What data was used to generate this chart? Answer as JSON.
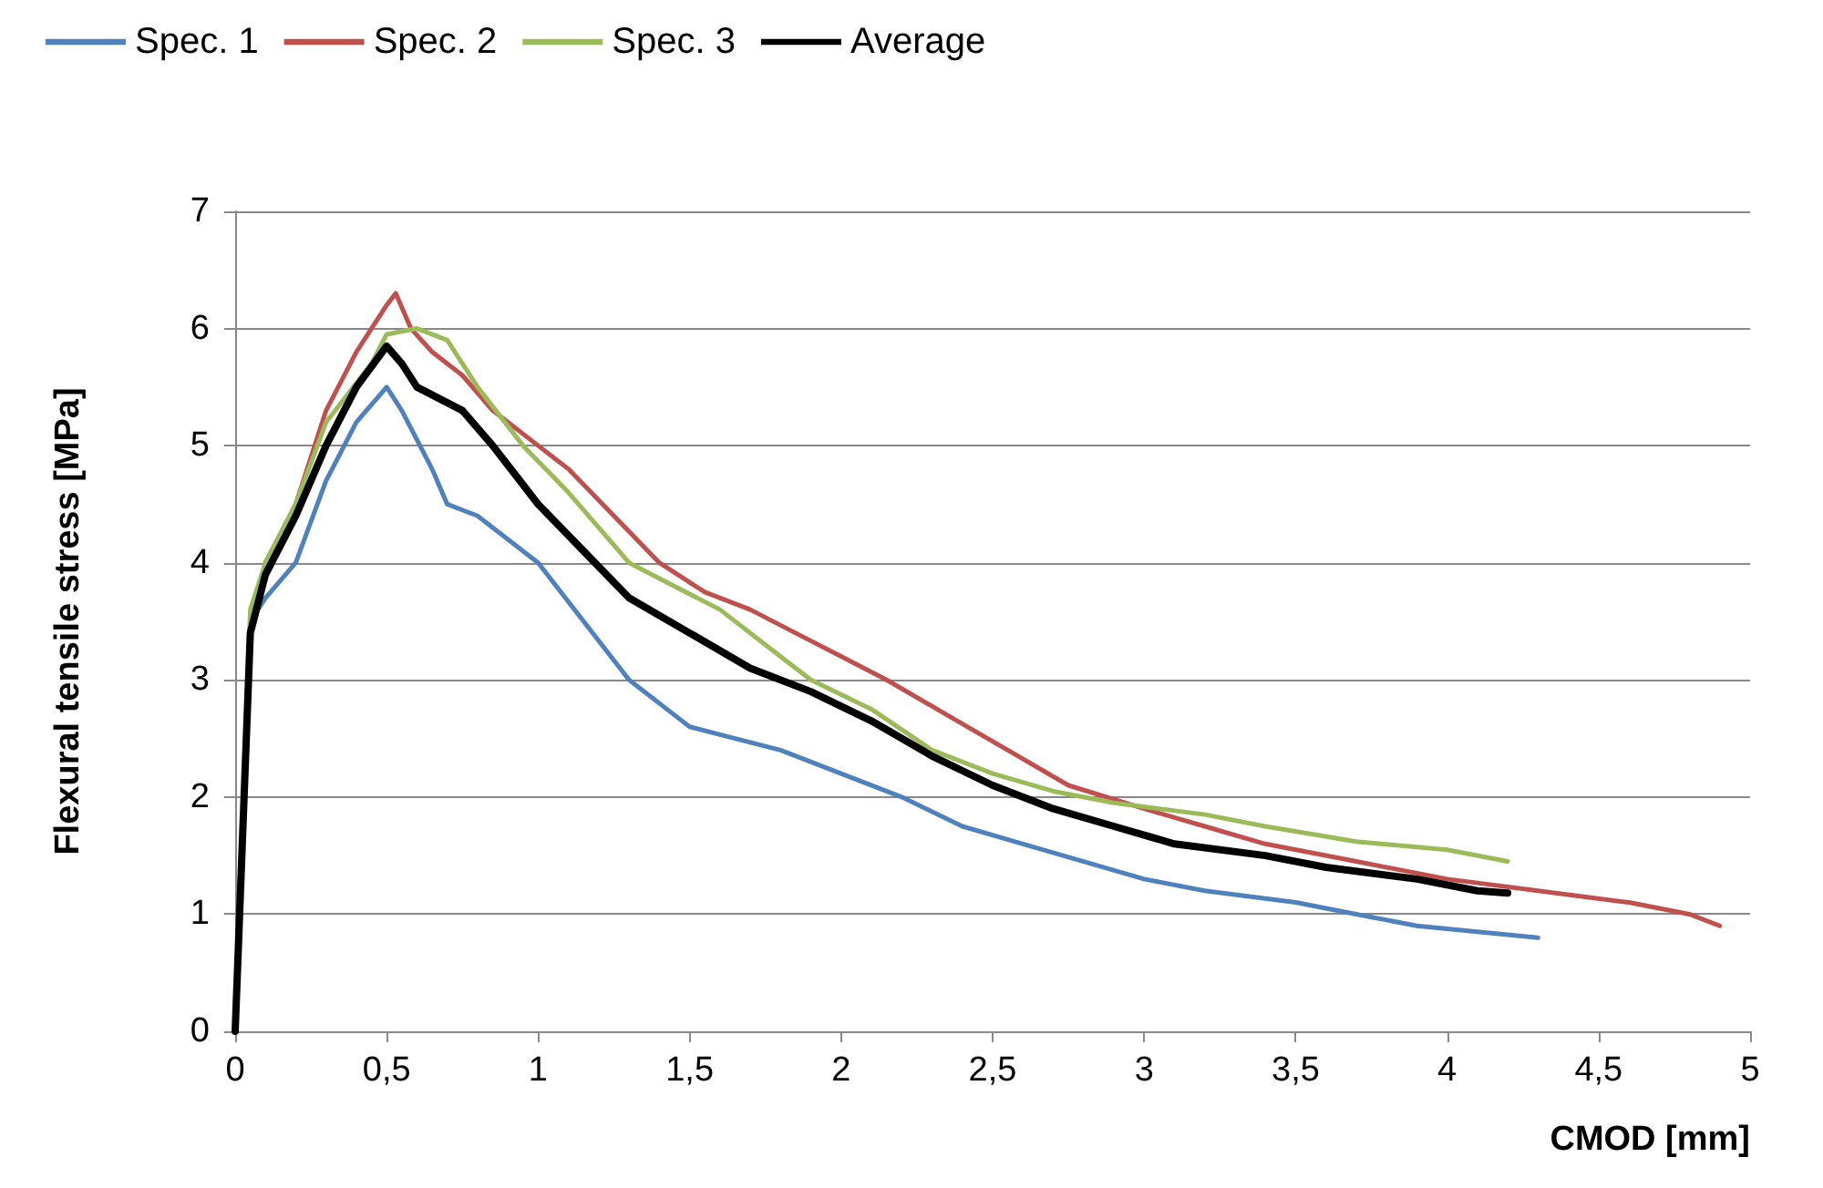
{
  "chart_data": {
    "type": "line",
    "xlabel": "CMOD [mm]",
    "ylabel": "Flexural tensile stress [MPa]",
    "xlim": [
      0,
      5
    ],
    "xticks": [
      0,
      {
        "value": 0.5,
        "label": "0,5"
      },
      1,
      {
        "value": 1.5,
        "label": "1,5"
      },
      2,
      {
        "value": 2.5,
        "label": "2,5"
      },
      3,
      {
        "value": 3.5,
        "label": "3,5"
      },
      4,
      {
        "value": 4.5,
        "label": "4,5"
      },
      5
    ],
    "ylim": [
      0,
      7
    ],
    "yticks": [
      0,
      1,
      2,
      3,
      4,
      5,
      6,
      7
    ],
    "grid": "y",
    "legend": "top left",
    "marker": "none",
    "line_style": "solid",
    "series": [
      {
        "name": "Spec. 1",
        "color": "#4f81bd",
        "x": [
          0,
          0.05,
          0.1,
          0.2,
          0.3,
          0.4,
          0.5,
          0.55,
          0.65,
          0.7,
          0.8,
          0.9,
          1.0,
          1.15,
          1.3,
          1.45,
          1.5,
          1.65,
          1.8,
          2.0,
          2.2,
          2.4,
          2.6,
          2.8,
          3.0,
          3.2,
          3.5,
          3.7,
          3.9,
          4.1,
          4.3
        ],
        "values": [
          0,
          3.5,
          3.7,
          4.0,
          4.7,
          5.2,
          5.5,
          5.3,
          4.8,
          4.5,
          4.4,
          4.2,
          4.0,
          3.5,
          3.0,
          2.7,
          2.6,
          2.5,
          2.4,
          2.2,
          2.0,
          1.75,
          1.6,
          1.45,
          1.3,
          1.2,
          1.1,
          1.0,
          0.9,
          0.85,
          0.8
        ]
      },
      {
        "name": "Spec. 2",
        "color": "#c0504d",
        "x": [
          0,
          0.05,
          0.1,
          0.2,
          0.3,
          0.4,
          0.5,
          0.53,
          0.58,
          0.65,
          0.75,
          0.85,
          1.0,
          1.1,
          1.25,
          1.4,
          1.55,
          1.7,
          1.85,
          2.0,
          2.15,
          2.35,
          2.55,
          2.75,
          3.0,
          3.2,
          3.4,
          3.7,
          4.0,
          4.3,
          4.6,
          4.8,
          4.9
        ],
        "values": [
          0,
          3.5,
          4.0,
          4.5,
          5.3,
          5.8,
          6.2,
          6.3,
          6.0,
          5.8,
          5.6,
          5.3,
          5.0,
          4.8,
          4.4,
          4.0,
          3.75,
          3.6,
          3.4,
          3.2,
          3.0,
          2.7,
          2.4,
          2.1,
          1.9,
          1.75,
          1.6,
          1.45,
          1.3,
          1.2,
          1.1,
          1.0,
          0.9
        ]
      },
      {
        "name": "Spec. 3",
        "color": "#9bbb59",
        "x": [
          0,
          0.05,
          0.1,
          0.2,
          0.3,
          0.45,
          0.5,
          0.6,
          0.7,
          0.8,
          0.95,
          1.1,
          1.3,
          1.45,
          1.6,
          1.75,
          1.9,
          2.1,
          2.3,
          2.5,
          2.7,
          2.9,
          3.2,
          3.4,
          3.7,
          4.0,
          4.2
        ],
        "values": [
          0,
          3.6,
          4.0,
          4.5,
          5.2,
          5.7,
          5.95,
          6.0,
          5.9,
          5.5,
          5.0,
          4.6,
          4.0,
          3.8,
          3.6,
          3.3,
          3.0,
          2.75,
          2.4,
          2.2,
          2.05,
          1.95,
          1.85,
          1.75,
          1.62,
          1.55,
          1.45
        ]
      },
      {
        "name": "Average",
        "color": "#000000",
        "x": [
          0,
          0.05,
          0.1,
          0.2,
          0.3,
          0.4,
          0.5,
          0.55,
          0.6,
          0.75,
          0.85,
          1.0,
          1.15,
          1.3,
          1.5,
          1.7,
          1.9,
          2.1,
          2.3,
          2.5,
          2.7,
          2.9,
          3.1,
          3.4,
          3.6,
          3.9,
          4.1,
          4.2
        ],
        "values": [
          0,
          3.4,
          3.9,
          4.4,
          5.0,
          5.5,
          5.85,
          5.7,
          5.5,
          5.3,
          5.0,
          4.5,
          4.1,
          3.7,
          3.4,
          3.1,
          2.9,
          2.65,
          2.35,
          2.1,
          1.9,
          1.75,
          1.6,
          1.5,
          1.4,
          1.3,
          1.2,
          1.18
        ]
      }
    ]
  }
}
